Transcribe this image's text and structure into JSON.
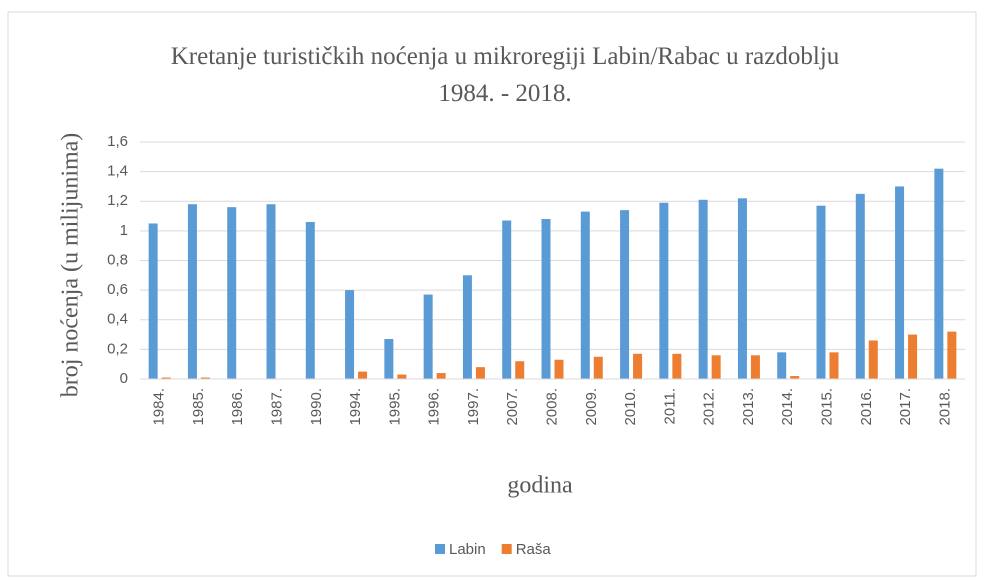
{
  "chart_data": {
    "type": "bar",
    "title": "Kretanje turističkih noćenja u mikroregiji Labin/Rabac u razdoblju 1984. - 2018.",
    "x_label": "godina",
    "y_label": "broj noćenja (u milijunima)",
    "categories": [
      "1984.",
      "1985.",
      "1986.",
      "1987.",
      "1990.",
      "1994.",
      "1995.",
      "1996.",
      "1997.",
      "2007.",
      "2008.",
      "2009.",
      "2010.",
      "2011.",
      "2012.",
      "2013.",
      "2014.",
      "2015.",
      "2016.",
      "2017.",
      "2018."
    ],
    "series": [
      {
        "name": "Labin",
        "color": "#5b9bd5",
        "values": [
          1.05,
          1.18,
          1.16,
          1.18,
          1.06,
          0.6,
          0.27,
          0.57,
          0.7,
          1.07,
          1.08,
          1.13,
          1.14,
          1.19,
          1.21,
          1.22,
          0.18,
          1.17,
          1.25,
          1.3,
          1.42
        ]
      },
      {
        "name": "Raša",
        "color": "#ed7d31",
        "values": [
          0.01,
          0.01,
          0,
          0,
          0,
          0.05,
          0.03,
          0.04,
          0.08,
          0.12,
          0.13,
          0.15,
          0.17,
          0.17,
          0.16,
          0.16,
          0.02,
          0.18,
          0.26,
          0.3,
          0.32
        ]
      }
    ],
    "ylim": [
      0,
      1.6
    ],
    "yticks": [
      0,
      {
        "value": 0.2,
        "label": "0,2"
      },
      {
        "value": 0.4,
        "label": "0,4"
      },
      {
        "value": 0.6,
        "label": "0,6"
      },
      {
        "value": 0.8,
        "label": "0,8"
      },
      1,
      {
        "value": 1.2,
        "label": "1,2"
      },
      {
        "value": 1.4,
        "label": "1,4"
      },
      {
        "value": 1.6,
        "label": "1,6"
      }
    ],
    "grid": true,
    "legend": "bottom"
  }
}
